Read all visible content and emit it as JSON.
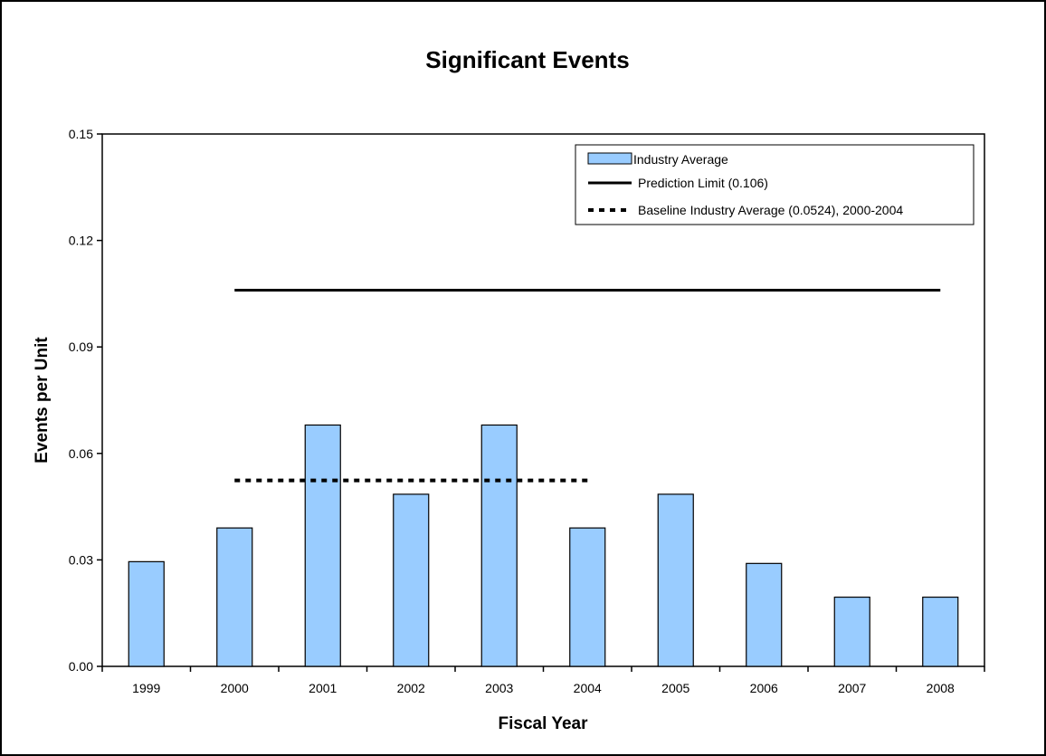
{
  "chart_data": {
    "type": "bar",
    "title": "Significant Events",
    "xlabel": "Fiscal Year",
    "ylabel": "Events per Unit",
    "ylim": [
      0,
      0.15
    ],
    "yticks": [
      "0.00",
      "0.03",
      "0.06",
      "0.09",
      "0.12",
      "0.15"
    ],
    "categories": [
      "1999",
      "2000",
      "2001",
      "2002",
      "2003",
      "2004",
      "2005",
      "2006",
      "2007",
      "2008"
    ],
    "series": [
      {
        "name": "Industry Average",
        "type": "bar",
        "color": "#99ccff",
        "values": [
          0.0295,
          0.039,
          0.068,
          0.0485,
          0.068,
          0.039,
          0.0485,
          0.029,
          0.0195,
          0.0195
        ]
      },
      {
        "name": "Prediction Limit (0.106)",
        "type": "line",
        "style": "solid",
        "color": "#000000",
        "value": 0.106,
        "x_range": [
          "2000",
          "2008"
        ]
      },
      {
        "name": "Baseline Industry Average (0.0524), 2000-2004",
        "type": "line",
        "style": "dotted",
        "color": "#000000",
        "value": 0.0524,
        "x_range": [
          "2000",
          "2004"
        ]
      }
    ],
    "legend_position": "top-right",
    "grid": false
  }
}
